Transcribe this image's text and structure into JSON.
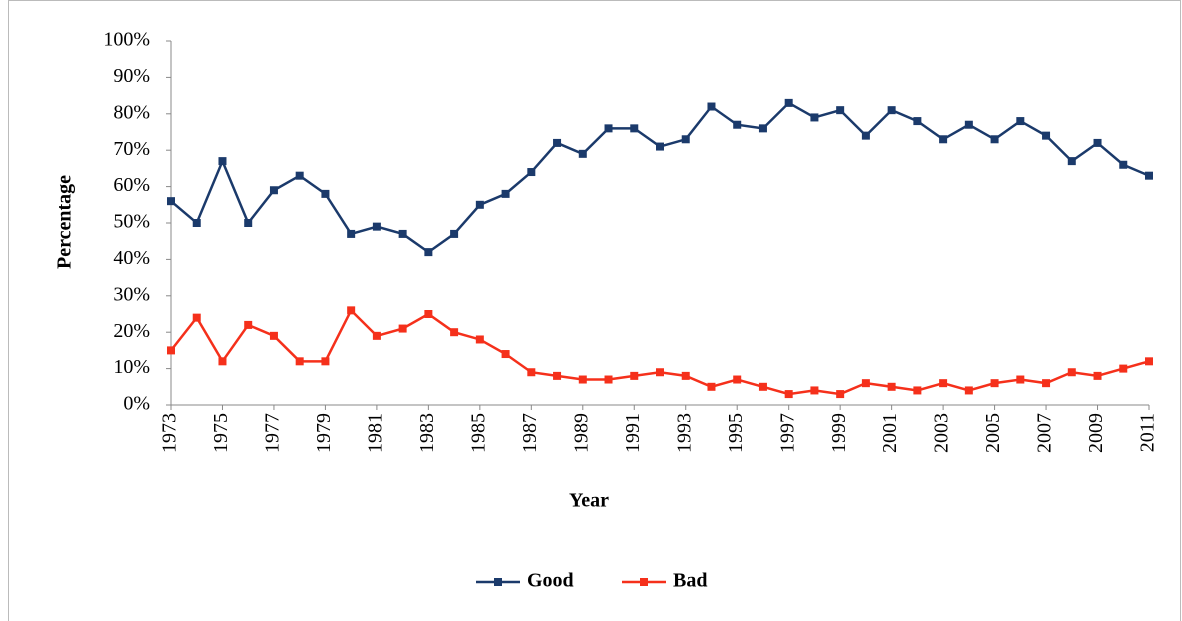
{
  "chart_data": {
    "type": "line",
    "xlabel": "Year",
    "ylabel": "Percentage",
    "x": [
      1973,
      1974,
      1975,
      1976,
      1977,
      1978,
      1979,
      1980,
      1981,
      1982,
      1983,
      1984,
      1985,
      1986,
      1987,
      1988,
      1989,
      1990,
      1991,
      1992,
      1993,
      1994,
      1995,
      1996,
      1997,
      1998,
      1999,
      2000,
      2001,
      2002,
      2003,
      2004,
      2005,
      2006,
      2007,
      2008,
      2009,
      2010,
      2011
    ],
    "series": [
      {
        "name": "Good",
        "color": "#1b3a6b",
        "values": [
          56,
          50,
          67,
          50,
          59,
          63,
          58,
          47,
          49,
          47,
          42,
          47,
          55,
          58,
          64,
          72,
          69,
          76,
          76,
          71,
          73,
          82,
          77,
          76,
          83,
          79,
          81,
          74,
          81,
          78,
          73,
          77,
          73,
          78,
          74,
          67,
          72,
          66,
          63
        ]
      },
      {
        "name": "Bad",
        "color": "#f5301b",
        "values": [
          15,
          24,
          12,
          22,
          19,
          12,
          12,
          26,
          19,
          21,
          25,
          20,
          18,
          14,
          9,
          8,
          7,
          7,
          8,
          9,
          8,
          5,
          7,
          5,
          3,
          4,
          3,
          6,
          5,
          4,
          6,
          4,
          6,
          7,
          6,
          9,
          8,
          10,
          12
        ]
      }
    ],
    "xlim": [
      1973,
      2011
    ],
    "xticks": [
      1973,
      1975,
      1977,
      1979,
      1981,
      1983,
      1985,
      1987,
      1989,
      1991,
      1993,
      1995,
      1997,
      1999,
      2001,
      2003,
      2005,
      2007,
      2009,
      2011
    ],
    "ylim": [
      0,
      100
    ],
    "yticks": [
      {
        "value": 0,
        "label": "0%"
      },
      {
        "value": 10,
        "label": "10%"
      },
      {
        "value": 20,
        "label": "20%"
      },
      {
        "value": 30,
        "label": "30%"
      },
      {
        "value": 40,
        "label": "40%"
      },
      {
        "value": 50,
        "label": "50%"
      },
      {
        "value": 60,
        "label": "60%"
      },
      {
        "value": 70,
        "label": "70%"
      },
      {
        "value": 80,
        "label": "80%"
      },
      {
        "value": 90,
        "label": "90%"
      },
      {
        "value": 100,
        "label": "100%"
      }
    ],
    "grid": false,
    "legend": "bottom"
  }
}
